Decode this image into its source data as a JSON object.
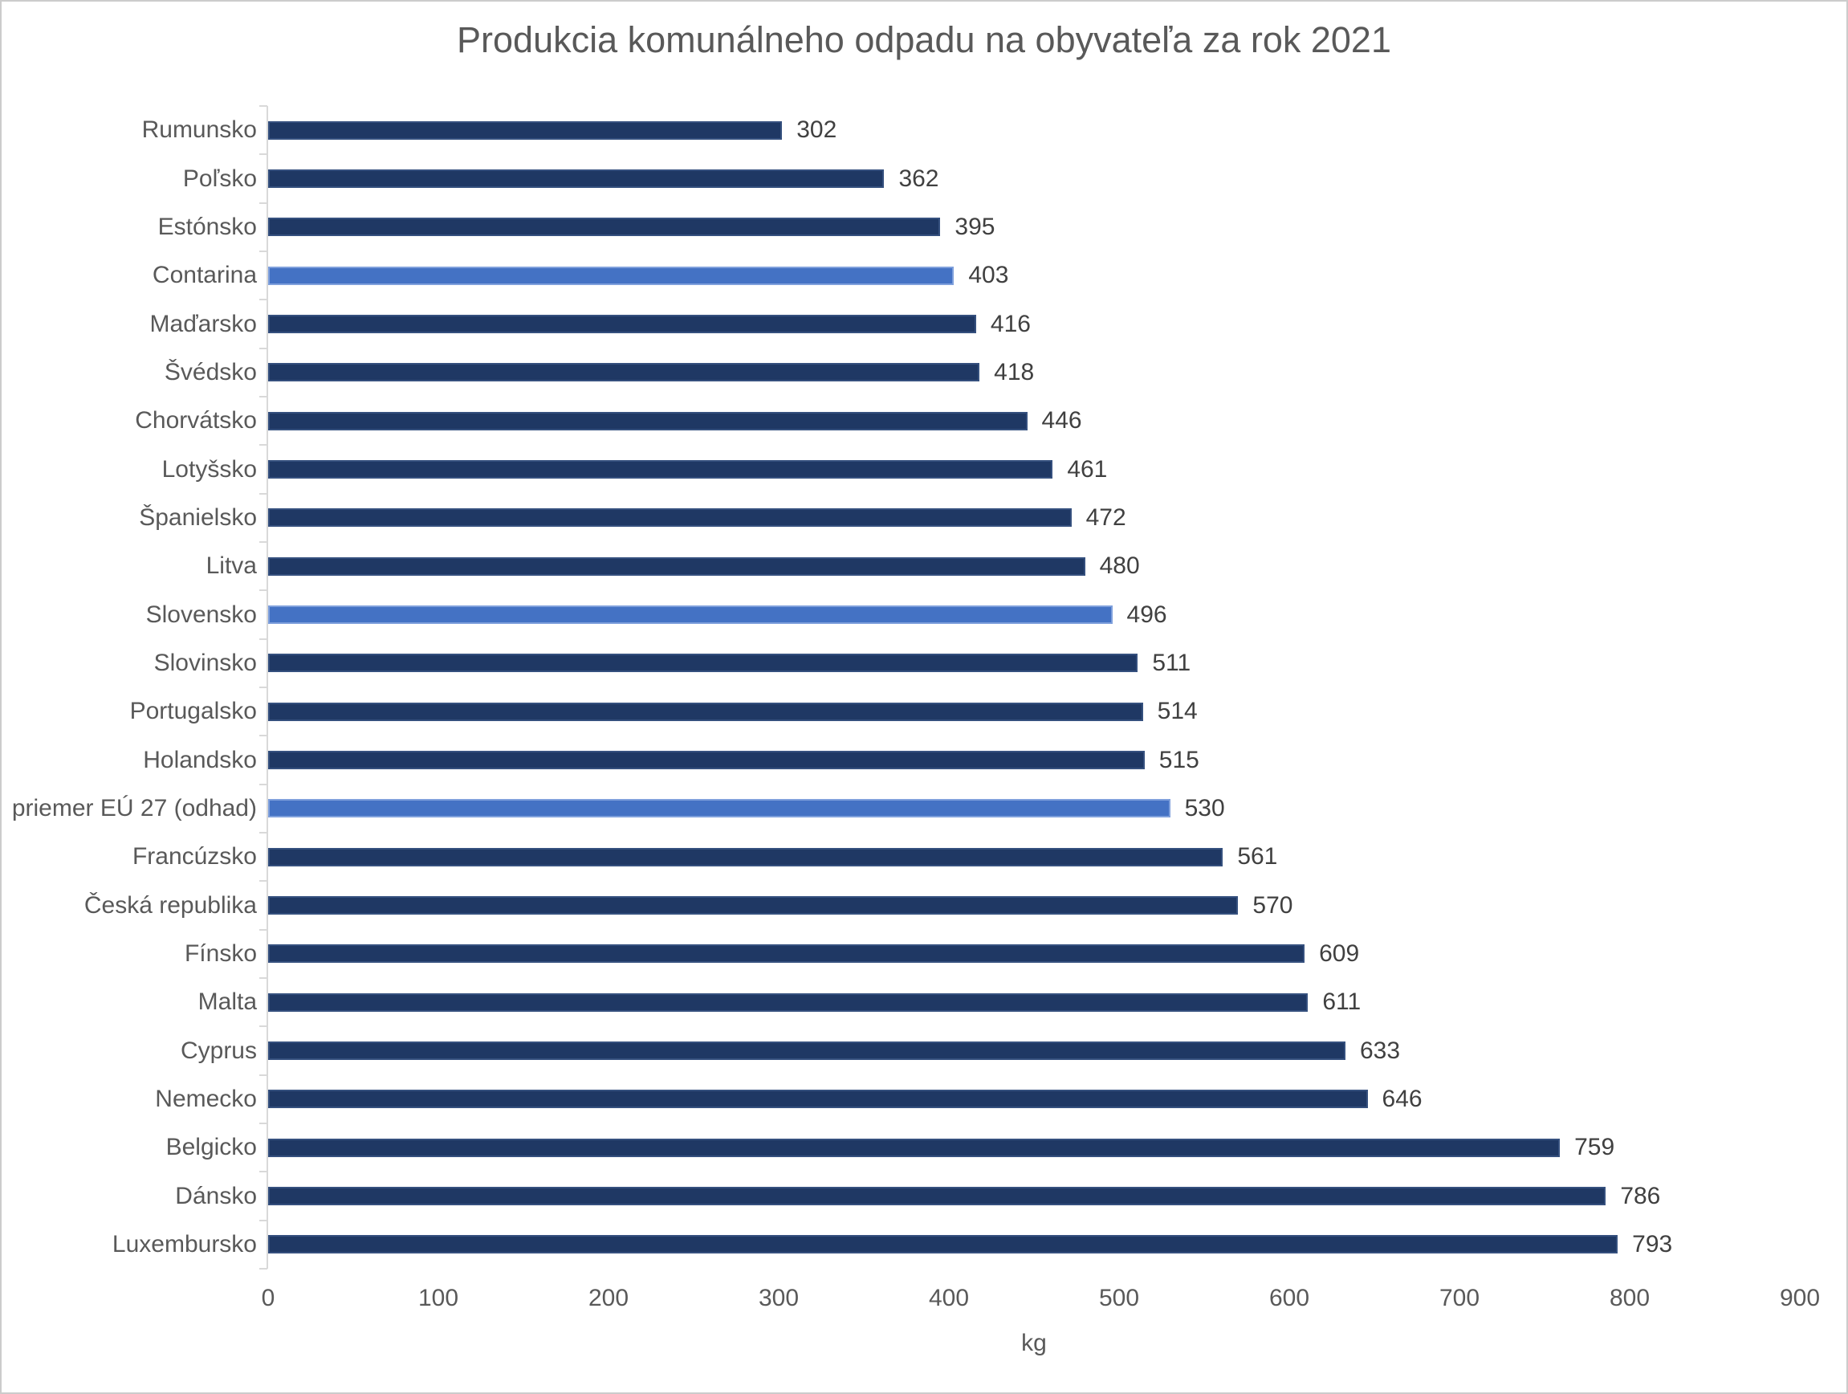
{
  "chart_data": {
    "type": "bar",
    "orientation": "horizontal",
    "title": "Produkcia komunálneho odpadu na obyvateľa za rok 2021",
    "xlabel": "kg",
    "xlim": [
      0,
      900
    ],
    "xticks": [
      0,
      100,
      200,
      300,
      400,
      500,
      600,
      700,
      800,
      900
    ],
    "grid": false,
    "legend": "none",
    "bar_color": "#1F3864",
    "highlight_color": "#4472C4",
    "highlight_indices": [
      3,
      10,
      14
    ],
    "categories": [
      "Rumunsko",
      "Poľsko",
      "Estónsko",
      "Contarina",
      "Maďarsko",
      "Švédsko",
      "Chorvátsko",
      "Lotyšsko",
      "Španielsko",
      "Litva",
      "Slovensko",
      "Slovinsko",
      "Portugalsko",
      "Holandsko",
      "priemer EÚ 27 (odhad)",
      "Francúzsko",
      "Česká republika",
      "Fínsko",
      "Malta",
      "Cyprus",
      "Nemecko",
      "Belgicko",
      "Dánsko",
      "Luxembursko"
    ],
    "values": [
      302,
      362,
      395,
      403,
      416,
      418,
      446,
      461,
      472,
      480,
      496,
      511,
      514,
      515,
      530,
      561,
      570,
      609,
      611,
      633,
      646,
      759,
      786,
      793
    ]
  }
}
